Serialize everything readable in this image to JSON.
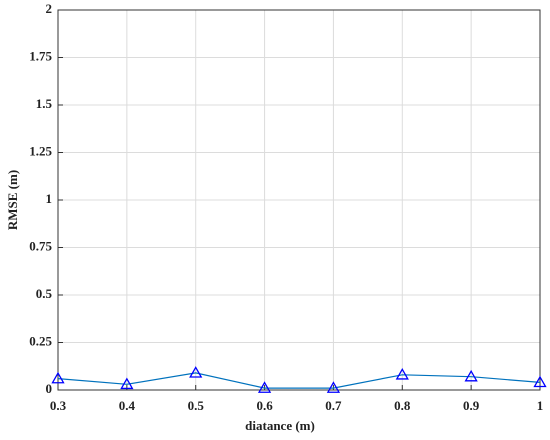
{
  "chart_data": {
    "type": "line",
    "xlabel": "diatance (m)",
    "ylabel": "RMSE (m)",
    "x": [
      0.3,
      0.4,
      0.5,
      0.6,
      0.7,
      0.8,
      0.9,
      1
    ],
    "series": [
      {
        "color": "#0072bd",
        "marker_color": "#0000ff",
        "marker": "triangle",
        "values": [
          0.06,
          0.03,
          0.09,
          0.01,
          0.01,
          0.08,
          0.07,
          0.04
        ]
      }
    ],
    "xlim": [
      0.3,
      1
    ],
    "xticks": [
      0.3,
      0.4,
      0.5,
      0.6,
      0.7,
      0.8,
      0.9,
      1
    ],
    "ylim": [
      0,
      2
    ],
    "yticks": [
      0,
      0.25,
      0.5,
      0.75,
      1,
      1.25,
      1.5,
      1.75,
      2
    ],
    "grid": true
  }
}
